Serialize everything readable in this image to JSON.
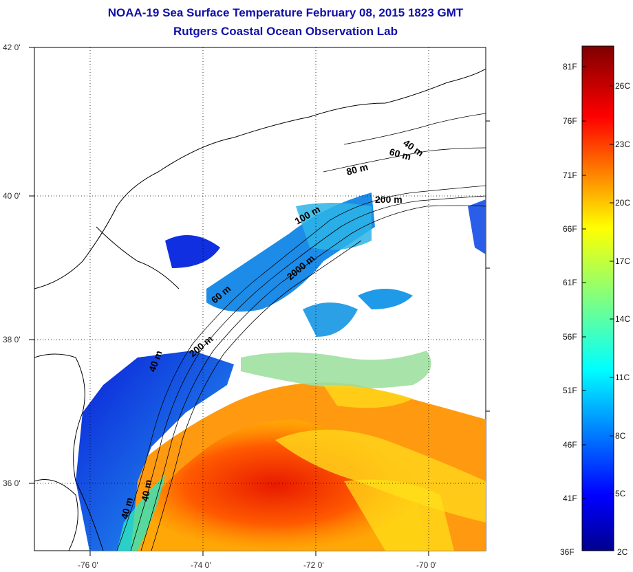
{
  "title": {
    "line1": "NOAA-19 Sea Surface Temperature February 08, 2015 1823 GMT",
    "line2": "Rutgers Coastal Ocean Observation Lab"
  },
  "map": {
    "lat_labels": [
      "42 0'",
      "40 0'",
      "38 0'",
      "36 0'"
    ],
    "lon_labels": [
      "-76 0'",
      "-74 0'",
      "-72 0'",
      "-70 0'"
    ],
    "contour_labels": [
      "40 m",
      "60 m",
      "80 m",
      "200 m",
      "100 m",
      "2000 m",
      "60 m",
      "200 m",
      "40 m",
      "40 m",
      "40 m"
    ]
  },
  "colorbar": {
    "fahrenheit": [
      "81F",
      "76F",
      "71F",
      "66F",
      "61F",
      "56F",
      "51F",
      "46F",
      "41F",
      "36F"
    ],
    "celsius": [
      "26C",
      "23C",
      "20C",
      "17C",
      "14C",
      "11C",
      "8C",
      "5C",
      "2C"
    ],
    "colors": [
      "#7f0000",
      "#ff0000",
      "#ff8000",
      "#ffff00",
      "#80ff80",
      "#00ffff",
      "#0080ff",
      "#0000ff",
      "#00008f"
    ]
  }
}
